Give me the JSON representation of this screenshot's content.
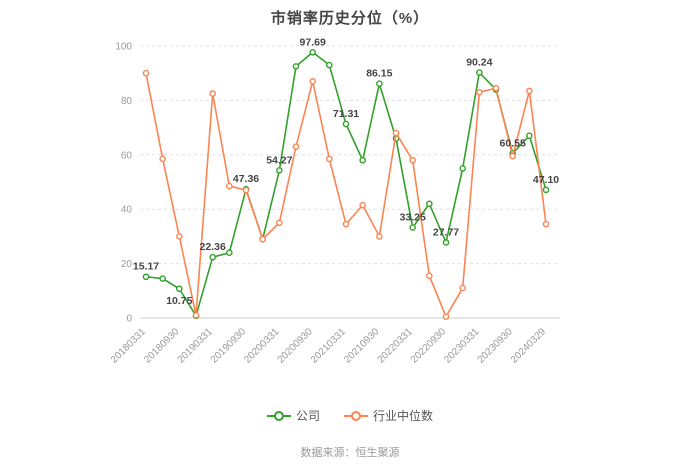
{
  "chart_data": {
    "type": "line",
    "title": "市销率历史分位（%）",
    "source": "数据来源：恒生聚源",
    "ylim": [
      0,
      100
    ],
    "y_ticks": [
      0,
      20,
      40,
      60,
      80,
      100
    ],
    "legend_position": "bottom",
    "grid": "horizontal-dashed",
    "x_tick_labels": [
      "20180331",
      "20180930",
      "20190331",
      "20190930",
      "20200331",
      "20200930",
      "20210331",
      "20210930",
      "20220331",
      "20220930",
      "20230331",
      "20230930",
      "20240329"
    ],
    "x": [
      "20180331",
      "20180630",
      "20180930",
      "20181231",
      "20190331",
      "20190630",
      "20190930",
      "20191231",
      "20200331",
      "20200630",
      "20200930",
      "20201231",
      "20210331",
      "20210630",
      "20210930",
      "20211231",
      "20220331",
      "20220630",
      "20220930",
      "20221231",
      "20230331",
      "20230630",
      "20230930",
      "20231231",
      "20240329"
    ],
    "series": [
      {
        "key": "company",
        "name": "公司",
        "color": "#33a02c",
        "values": [
          15.17,
          14.5,
          10.75,
          0.8,
          22.36,
          24.0,
          47.36,
          29.0,
          54.27,
          92.5,
          97.69,
          93.0,
          71.31,
          58.0,
          86.15,
          66.0,
          33.25,
          42.0,
          27.77,
          55.0,
          90.24,
          84.0,
          60.55,
          67.0,
          47.1
        ],
        "point_labels": [
          "15.17",
          "10.75",
          "22.36",
          "47.36",
          "54.27",
          "97.69",
          "71.31",
          "86.15",
          "33.25",
          "27.77",
          "90.24",
          "60.55",
          "47.10"
        ]
      },
      {
        "key": "industry_median",
        "name": "行业中位数",
        "color": "#fc8452",
        "values": [
          90.0,
          58.5,
          30.0,
          1.0,
          82.5,
          48.5,
          47.0,
          29.0,
          35.0,
          63.0,
          87.0,
          58.5,
          34.5,
          41.5,
          30.0,
          68.0,
          58.0,
          15.5,
          0.5,
          11.0,
          83.0,
          84.5,
          59.5,
          83.5,
          34.5
        ]
      }
    ],
    "colors": {
      "axis_text": "#999999",
      "label_text": "#444444",
      "grid_line": "#e0e0e0",
      "axis_line": "#cccccc",
      "title_text": "#444444",
      "legend_text": "#555555",
      "source_text": "#999999"
    }
  }
}
